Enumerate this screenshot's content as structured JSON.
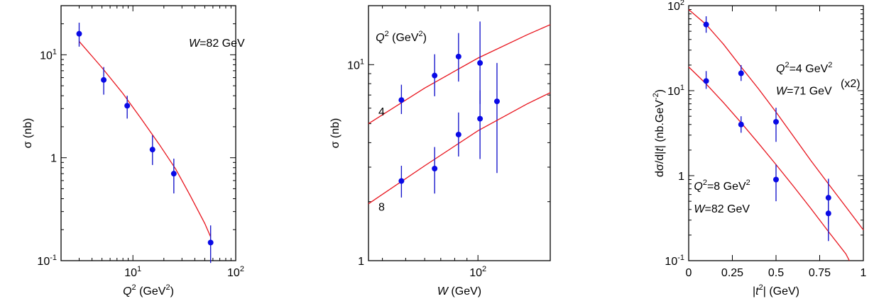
{
  "chart_data": [
    {
      "id": "p1",
      "type": "scatter",
      "xscale": "log",
      "yscale": "log",
      "xlim": [
        2,
        100
      ],
      "ylim": [
        0.1,
        30
      ],
      "xlabel": {
        "var": "Q",
        "sup": "2",
        "unit": " (GeV",
        "unit_sup": "2",
        "close": ")"
      },
      "ylabel": "σ (nb)",
      "xticks": [
        {
          "v": 10,
          "base": "10",
          "exp": "1"
        },
        {
          "v": 100,
          "base": "10",
          "exp": "2"
        }
      ],
      "yticks": [
        {
          "v": 0.1,
          "base": "10",
          "exp": "-1"
        },
        {
          "v": 1,
          "base": "1",
          "exp": ""
        },
        {
          "v": 10,
          "base": "10",
          "exp": "1"
        }
      ],
      "annotations": [
        {
          "text_it": "W",
          "text": "=82 GeV",
          "at": [
            35,
            12
          ]
        }
      ],
      "series": [
        {
          "points": [
            [
              3,
              16,
              12,
              20.5
            ],
            [
              5.2,
              5.7,
              4.1,
              7.6
            ],
            [
              8.8,
              3.2,
              2.4,
              4.0
            ],
            [
              15.5,
              1.2,
              0.85,
              1.65
            ],
            [
              25,
              0.7,
              0.45,
              0.98
            ],
            [
              57,
              0.15,
              0.095,
              0.22
            ]
          ],
          "curve": [
            [
              3,
              13.5
            ],
            [
              5,
              7.5
            ],
            [
              8,
              4.2
            ],
            [
              12,
              2.4
            ],
            [
              18,
              1.35
            ],
            [
              26,
              0.78
            ],
            [
              36,
              0.43
            ],
            [
              50,
              0.23
            ],
            [
              57,
              0.17
            ]
          ]
        }
      ]
    },
    {
      "id": "p2",
      "type": "scatter",
      "xscale": "log",
      "yscale": "log",
      "xlim": [
        35,
        200
      ],
      "ylim": [
        1,
        20
      ],
      "xlabel": {
        "var": "W",
        "sup": "",
        "unit": " (GeV)",
        "unit_sup": "",
        "close": ""
      },
      "ylabel": "σ (nb)",
      "xticks": [
        {
          "v": 100,
          "base": "10",
          "exp": "2"
        }
      ],
      "yticks": [
        {
          "v": 1,
          "base": "1",
          "exp": ""
        },
        {
          "v": 10,
          "base": "10",
          "exp": "1"
        }
      ],
      "annotations": [
        {
          "text_it": "Q",
          "sup": "2",
          "text": " (GeV",
          "sup2": "2",
          "close": ")",
          "at": [
            37.5,
            13.2
          ]
        },
        {
          "text": "4",
          "at": [
            38.5,
            5.5
          ]
        },
        {
          "text": "8",
          "at": [
            38.5,
            1.8
          ]
        }
      ],
      "series": [
        {
          "name": "4",
          "points": [
            [
              48,
              6.6,
              5.6,
              7.9
            ],
            [
              66,
              8.8,
              6.9,
              11.3
            ],
            [
              83,
              11,
              8.2,
              14.5
            ],
            [
              102,
              10.2,
              6.3,
              16.6
            ],
            [
              120,
              6.5,
              2.8,
              10.2
            ]
          ],
          "curve": [
            [
              35,
              5.0
            ],
            [
              60,
              7.6
            ],
            [
              100,
              10.8
            ],
            [
              160,
              14.2
            ],
            [
              200,
              16.0
            ]
          ]
        },
        {
          "name": "8",
          "points": [
            [
              48,
              2.55,
              2.1,
              3.05
            ],
            [
              66,
              2.95,
              2.2,
              3.8
            ],
            [
              83,
              4.4,
              3.4,
              5.7
            ],
            [
              102,
              5.3,
              3.3,
              7.4
            ]
          ],
          "curve": [
            [
              35,
              1.95
            ],
            [
              60,
              3.05
            ],
            [
              100,
              4.6
            ],
            [
              160,
              6.3
            ],
            [
              200,
              7.2
            ]
          ]
        }
      ]
    },
    {
      "id": "p3",
      "type": "scatter",
      "xscale": "linear",
      "yscale": "log",
      "xlim": [
        0,
        1
      ],
      "ylim": [
        0.1,
        100
      ],
      "xlabel": {
        "pre": "|",
        "var": "t",
        "post": "| (GeV",
        "sup": "2",
        "close": ")"
      },
      "ylabel": {
        "pre": "dσ/d|",
        "var": "t",
        "post": "| (nb.GeV",
        "sup": "-2",
        "close": ")"
      },
      "xticks": [
        {
          "v": 0,
          "label": "0"
        },
        {
          "v": 0.25,
          "label": "0.25"
        },
        {
          "v": 0.5,
          "label": "0.5"
        },
        {
          "v": 0.75,
          "label": "0.75"
        },
        {
          "v": 1,
          "label": "1"
        }
      ],
      "yticks": [
        {
          "v": 0.1,
          "base": "10",
          "exp": "-1"
        },
        {
          "v": 1,
          "base": "1",
          "exp": ""
        },
        {
          "v": 10,
          "base": "10",
          "exp": "1"
        },
        {
          "v": 100,
          "base": "10",
          "exp": "2"
        }
      ],
      "annotations": [
        {
          "text_it": "Q",
          "sup": "2",
          "text": "=4 GeV",
          "sup2": "2",
          "at": [
            0.5,
            16.5
          ]
        },
        {
          "text_it": "W",
          "text": "=71 GeV",
          "at": [
            0.5,
            9
          ]
        },
        {
          "text": "(x2)",
          "at": [
            0.87,
            11
          ]
        },
        {
          "text_it": "Q",
          "sup": "2",
          "text": "=8 GeV",
          "sup2": "2",
          "at": [
            0.03,
            0.68
          ]
        },
        {
          "text_it": "W",
          "text": "=82 GeV",
          "at": [
            0.03,
            0.37
          ]
        }
      ],
      "series": [
        {
          "name": "Q2=4 GeV2 (x2)",
          "points": [
            [
              0.1,
              60,
              48,
              75
            ],
            [
              0.3,
              16,
              13,
              20
            ],
            [
              0.5,
              4.3,
              2.5,
              6.3
            ],
            [
              0.8,
              0.55,
              0.27,
              0.92
            ]
          ],
          "curve": [
            [
              0,
              90
            ],
            [
              0.1,
              60
            ],
            [
              0.2,
              35
            ],
            [
              0.3,
              19
            ],
            [
              0.4,
              10.5
            ],
            [
              0.5,
              5.6
            ],
            [
              0.6,
              2.9
            ],
            [
              0.7,
              1.5
            ],
            [
              0.8,
              0.8
            ],
            [
              0.9,
              0.43
            ],
            [
              1.0,
              0.23
            ]
          ]
        },
        {
          "name": "Q2=8 GeV2",
          "points": [
            [
              0.1,
              13,
              10.5,
              17
            ],
            [
              0.3,
              4,
              3.2,
              5
            ],
            [
              0.5,
              0.9,
              0.5,
              1.35
            ],
            [
              0.8,
              0.36,
              0.17,
              0.56
            ]
          ],
          "curve": [
            [
              0,
              19
            ],
            [
              0.1,
              12
            ],
            [
              0.2,
              7.2
            ],
            [
              0.3,
              4.2
            ],
            [
              0.4,
              2.4
            ],
            [
              0.5,
              1.35
            ],
            [
              0.6,
              0.75
            ],
            [
              0.7,
              0.41
            ],
            [
              0.8,
              0.22
            ],
            [
              0.9,
              0.12
            ],
            [
              0.92,
              0.1
            ]
          ]
        }
      ]
    }
  ]
}
